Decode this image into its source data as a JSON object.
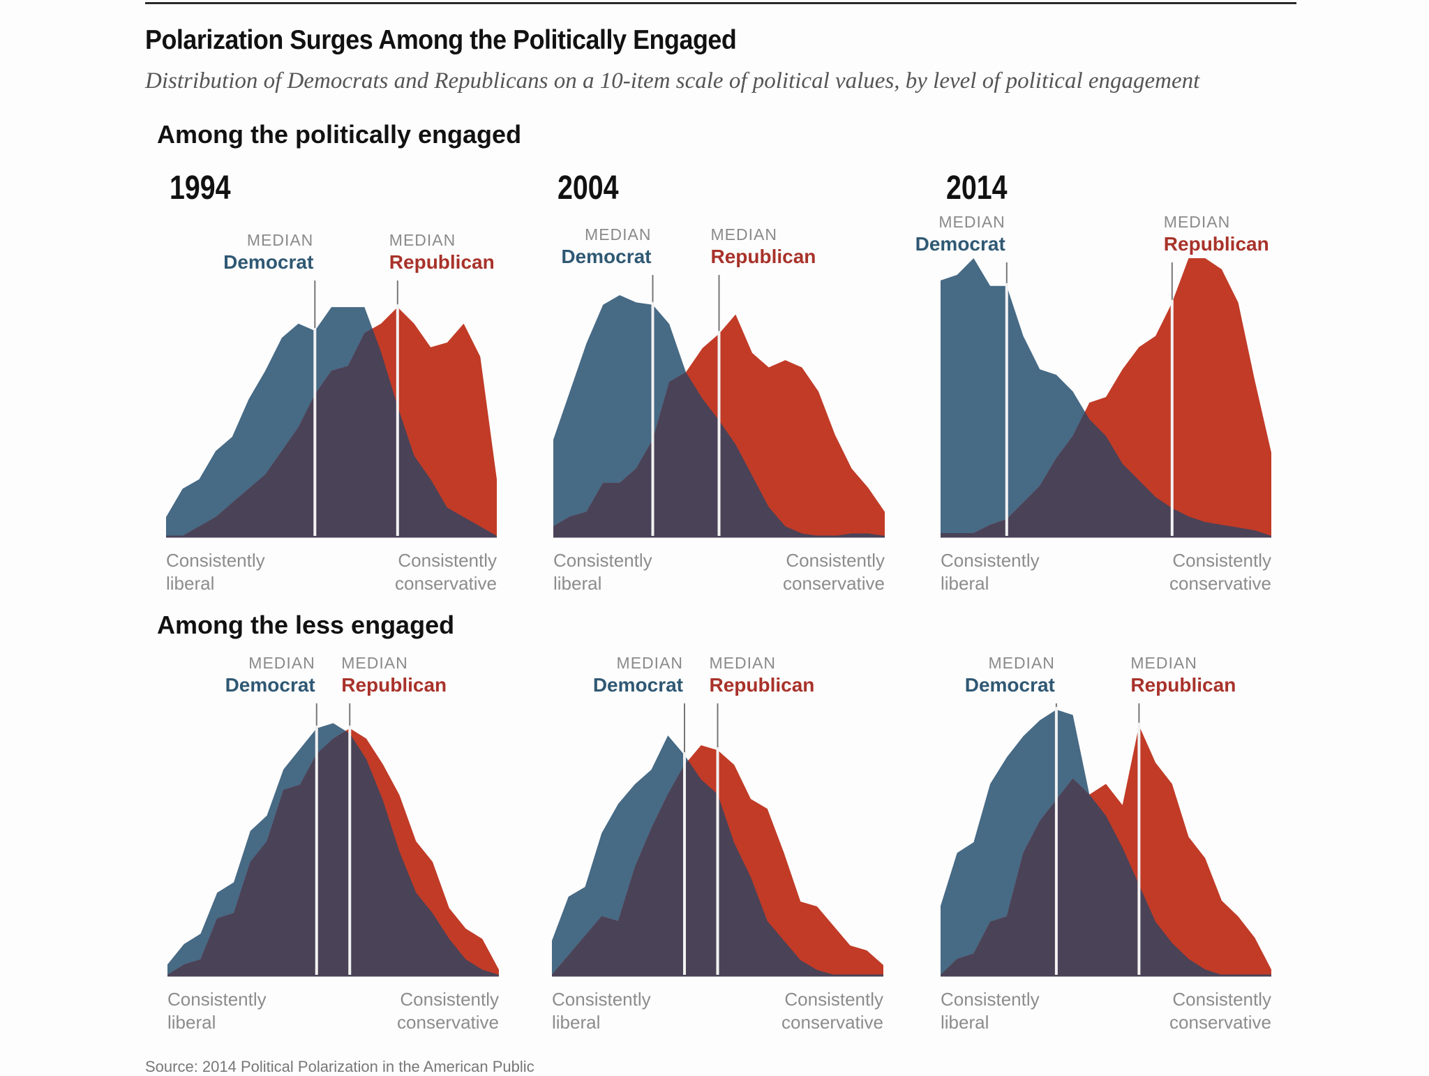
{
  "header": {
    "title": "Polarization Surges Among the Politically Engaged",
    "subtitle": "Distribution of Democrats and Republicans on a 10-item scale of political values, by level of political engagement"
  },
  "sections": {
    "engaged": "Among the politically engaged",
    "less_engaged": "Among the less engaged"
  },
  "labels": {
    "median": "MEDIAN",
    "democrat": "Democrat",
    "republican": "Republican",
    "left_line1": "Consistently",
    "left_line2": "liberal",
    "right_line1": "Consistently",
    "right_line2": "conservative"
  },
  "source_partial": "Source: 2014 Political Polarization in the American Public",
  "colors": {
    "democrat": "#476a85",
    "republican": "#c13b27",
    "overlap": "#4a4257",
    "democrat_text": "#2f5873",
    "republican_text": "#a8322a",
    "median_line": "#f2f2f2"
  },
  "chart_data": [
    {
      "type": "area",
      "group": "Among the politically engaged",
      "title": "1994",
      "x": [
        -10,
        -9,
        -8,
        -7,
        -6,
        -5,
        -4,
        -3,
        -2,
        -1,
        0,
        1,
        2,
        3,
        4,
        5,
        6,
        7,
        8,
        9,
        10
      ],
      "xlabel_left": "Consistently liberal",
      "xlabel_right": "Consistently conservative",
      "series": [
        {
          "name": "Democrat",
          "values": [
            8,
            20,
            24,
            36,
            42,
            58,
            70,
            84,
            90,
            87,
            97,
            97,
            97,
            78,
            55,
            34,
            24,
            12,
            8,
            4,
            0
          ]
        },
        {
          "name": "Republican",
          "values": [
            0,
            0,
            4,
            8,
            14,
            20,
            26,
            36,
            46,
            60,
            70,
            72,
            86,
            90,
            97,
            90,
            80,
            82,
            90,
            76,
            24
          ]
        }
      ],
      "median_democrat": -1,
      "median_republican": 4
    },
    {
      "type": "area",
      "group": "Among the politically engaged",
      "title": "2004",
      "x": [
        -10,
        -9,
        -8,
        -7,
        -6,
        -5,
        -4,
        -3,
        -2,
        -1,
        0,
        1,
        2,
        3,
        4,
        5,
        6,
        7,
        8,
        9,
        10
      ],
      "xlabel_left": "Consistently liberal",
      "xlabel_right": "Consistently conservative",
      "series": [
        {
          "name": "Democrat",
          "values": [
            40,
            60,
            80,
            96,
            100,
            97,
            96,
            88,
            68,
            57,
            48,
            38,
            25,
            12,
            4,
            1,
            0,
            0,
            1,
            1,
            0
          ]
        },
        {
          "name": "Republican",
          "values": [
            4,
            8,
            10,
            22,
            22,
            28,
            40,
            64,
            68,
            78,
            84,
            92,
            76,
            70,
            73,
            70,
            60,
            42,
            28,
            20,
            10
          ]
        }
      ],
      "median_democrat": -4,
      "median_republican": 0
    },
    {
      "type": "area",
      "group": "Among the politically engaged",
      "title": "2014",
      "x": [
        -10,
        -9,
        -8,
        -7,
        -6,
        -5,
        -4,
        -3,
        -2,
        -1,
        0,
        1,
        2,
        3,
        4,
        5,
        6,
        7,
        8,
        9,
        10
      ],
      "xlabel_left": "Consistently liberal",
      "xlabel_right": "Consistently conservative",
      "series": [
        {
          "name": "Democrat",
          "values": [
            92,
            94,
            100,
            90,
            90,
            72,
            60,
            58,
            52,
            42,
            36,
            26,
            20,
            14,
            10,
            7,
            5,
            4,
            3,
            2,
            0
          ]
        },
        {
          "name": "Republican",
          "values": [
            1,
            1,
            1,
            4,
            6,
            12,
            18,
            28,
            36,
            48,
            50,
            60,
            68,
            72,
            84,
            100,
            100,
            96,
            84,
            56,
            30
          ]
        }
      ],
      "median_democrat": -6,
      "median_republican": 4
    },
    {
      "type": "area",
      "group": "Among the less engaged",
      "title": "1994",
      "x": [
        -10,
        -9,
        -8,
        -7,
        -6,
        -5,
        -4,
        -3,
        -2,
        -1,
        0,
        1,
        2,
        3,
        4,
        5,
        6,
        7,
        8,
        9,
        10
      ],
      "xlabel_left": "Consistently liberal",
      "xlabel_right": "Consistently conservative",
      "series": [
        {
          "name": "Democrat",
          "values": [
            4,
            12,
            16,
            32,
            36,
            56,
            62,
            80,
            88,
            96,
            98,
            94,
            84,
            68,
            48,
            32,
            24,
            14,
            6,
            2,
            0
          ]
        },
        {
          "name": "Republican",
          "values": [
            0,
            4,
            6,
            22,
            24,
            44,
            52,
            72,
            74,
            86,
            92,
            96,
            92,
            82,
            70,
            52,
            44,
            26,
            18,
            14,
            2
          ]
        }
      ],
      "median_democrat": -1,
      "median_republican": 1
    },
    {
      "type": "area",
      "group": "Among the less engaged",
      "title": "2004",
      "x": [
        -10,
        -9,
        -8,
        -7,
        -6,
        -5,
        -4,
        -3,
        -2,
        -1,
        0,
        1,
        2,
        3,
        4,
        5,
        6,
        7,
        8,
        9,
        10
      ],
      "xlabel_left": "Consistently liberal",
      "xlabel_right": "Consistently conservative",
      "series": [
        {
          "name": "Democrat",
          "values": [
            14,
            32,
            36,
            58,
            70,
            78,
            84,
            98,
            90,
            80,
            74,
            54,
            40,
            22,
            14,
            6,
            2,
            0,
            0,
            0,
            0
          ]
        },
        {
          "name": "Republican",
          "values": [
            0,
            8,
            16,
            24,
            22,
            44,
            60,
            74,
            86,
            94,
            92,
            86,
            72,
            68,
            50,
            30,
            28,
            20,
            12,
            10,
            4
          ]
        }
      ],
      "median_democrat": -2,
      "median_republican": 0
    },
    {
      "type": "area",
      "group": "Among the less engaged",
      "title": "2014",
      "x": [
        -10,
        -9,
        -8,
        -7,
        -6,
        -5,
        -4,
        -3,
        -2,
        -1,
        0,
        1,
        2,
        3,
        4,
        5,
        6,
        7,
        8,
        9,
        10
      ],
      "xlabel_left": "Consistently liberal",
      "xlabel_right": "Consistently conservative",
      "series": [
        {
          "name": "Democrat",
          "values": [
            26,
            46,
            50,
            72,
            82,
            90,
            96,
            100,
            98,
            68,
            60,
            48,
            34,
            20,
            12,
            6,
            2,
            0,
            0,
            0,
            0
          ]
        },
        {
          "name": "Republican",
          "values": [
            0,
            6,
            8,
            20,
            22,
            46,
            58,
            66,
            74,
            68,
            72,
            64,
            94,
            80,
            72,
            52,
            44,
            28,
            22,
            14,
            2
          ]
        }
      ],
      "median_democrat": -3,
      "median_republican": 2
    }
  ]
}
